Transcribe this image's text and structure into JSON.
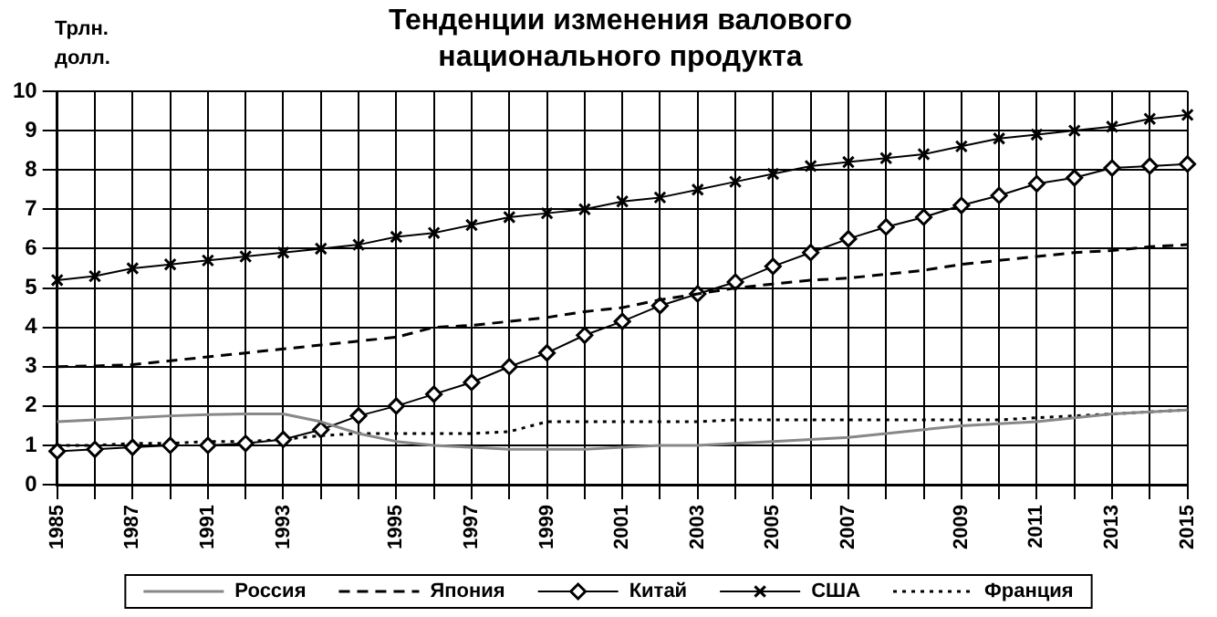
{
  "chart_data": {
    "type": "line",
    "title": "Тенденции изменения валового национального продукта",
    "ylabel": "Трлн. долл.",
    "categories": [
      "1985",
      null,
      "1987",
      null,
      "1991",
      null,
      "1993",
      null,
      null,
      "1995",
      null,
      "1997",
      null,
      "1999",
      null,
      "2001",
      null,
      "2003",
      null,
      "2005",
      null,
      "2007",
      null,
      null,
      "2009",
      null,
      "2011",
      null,
      "2013",
      null,
      "2015"
    ],
    "ylim": [
      0,
      10
    ],
    "yticks": [
      0,
      1,
      2,
      3,
      4,
      5,
      6,
      7,
      8,
      9,
      10
    ],
    "grid": true,
    "legend": "bottom",
    "series": [
      {
        "name": "Россия",
        "color": "#888888",
        "line_style": "solid",
        "marker": "none",
        "values": [
          1.6,
          1.65,
          1.7,
          1.75,
          1.78,
          1.8,
          1.8,
          1.6,
          1.3,
          1.1,
          1.0,
          0.95,
          0.9,
          0.9,
          0.9,
          0.95,
          1.0,
          1.0,
          1.05,
          1.1,
          1.15,
          1.2,
          1.3,
          1.4,
          1.5,
          1.55,
          1.6,
          1.7,
          1.8,
          1.85,
          1.9
        ]
      },
      {
        "name": "Япония",
        "color": "#000000",
        "line_style": "dashed",
        "marker": "none",
        "values": [
          3.0,
          3.02,
          3.05,
          3.15,
          3.25,
          3.35,
          3.45,
          3.55,
          3.65,
          3.75,
          4.0,
          4.05,
          4.15,
          4.25,
          4.4,
          4.5,
          4.7,
          4.85,
          5.0,
          5.1,
          5.2,
          5.25,
          5.35,
          5.45,
          5.6,
          5.7,
          5.8,
          5.9,
          5.95,
          6.05,
          6.1
        ]
      },
      {
        "name": "Китай",
        "color": "#000000",
        "line_style": "solid",
        "marker": "diamond",
        "values": [
          0.85,
          0.9,
          0.95,
          1.0,
          1.0,
          1.05,
          1.15,
          1.4,
          1.75,
          2.0,
          2.3,
          2.6,
          3.0,
          3.35,
          3.8,
          4.15,
          4.55,
          4.85,
          5.15,
          5.55,
          5.9,
          6.25,
          6.55,
          6.8,
          7.1,
          7.35,
          7.65,
          7.8,
          8.05,
          8.1,
          8.15
        ]
      },
      {
        "name": "США",
        "color": "#000000",
        "line_style": "solid",
        "marker": "cross",
        "values": [
          5.2,
          5.3,
          5.5,
          5.6,
          5.7,
          5.8,
          5.9,
          6.0,
          6.1,
          6.3,
          6.4,
          6.6,
          6.8,
          6.9,
          7.0,
          7.2,
          7.3,
          7.5,
          7.7,
          7.9,
          8.1,
          8.2,
          8.3,
          8.4,
          8.6,
          8.8,
          8.9,
          9.0,
          9.1,
          9.3,
          9.4
        ]
      },
      {
        "name": "Франция",
        "color": "#000000",
        "line_style": "dotted",
        "marker": "none",
        "values": [
          1.0,
          1.0,
          1.05,
          1.05,
          1.1,
          1.1,
          1.15,
          1.25,
          1.3,
          1.3,
          1.3,
          1.3,
          1.35,
          1.6,
          1.6,
          1.6,
          1.6,
          1.6,
          1.65,
          1.65,
          1.65,
          1.65,
          1.65,
          1.65,
          1.65,
          1.65,
          1.7,
          1.75,
          1.8,
          1.85,
          1.9
        ]
      }
    ]
  }
}
